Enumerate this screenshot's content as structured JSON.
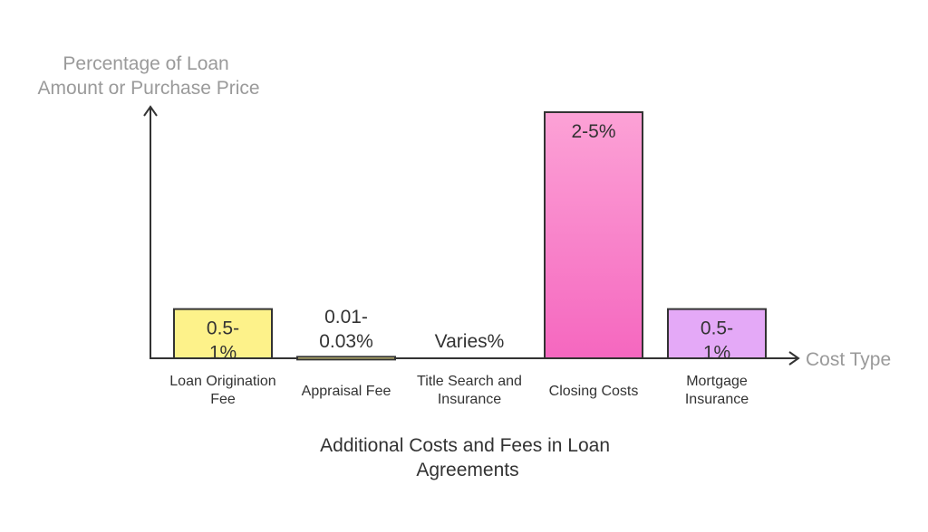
{
  "chart_data": {
    "type": "bar",
    "title": [
      "Additional Costs and Fees in Loan",
      "Agreements"
    ],
    "ylabel": [
      "Percentage of Loan",
      "Amount or Purchase Price"
    ],
    "xlabel": "Cost Type",
    "categories": [
      [
        "Loan Origination",
        "Fee"
      ],
      [
        "Appraisal Fee"
      ],
      [
        "Title Search and",
        "Insurance"
      ],
      [
        "Closing Costs"
      ],
      [
        "Mortgage",
        "Insurance"
      ]
    ],
    "values": [
      1,
      0.03,
      0,
      5,
      1
    ],
    "data_labels": [
      [
        "0.5-",
        "1%"
      ],
      [
        "0.01-",
        "0.03%"
      ],
      [
        "Varies%"
      ],
      [
        "2-5%"
      ],
      [
        "0.5-",
        "1%"
      ]
    ],
    "colors": [
      "#fdf28a",
      "#f3e88a",
      "#f3e88a",
      "#fb8fcf",
      "#e4a9f7"
    ],
    "ylim": [
      0,
      5
    ],
    "grid": false,
    "legend": "none"
  }
}
